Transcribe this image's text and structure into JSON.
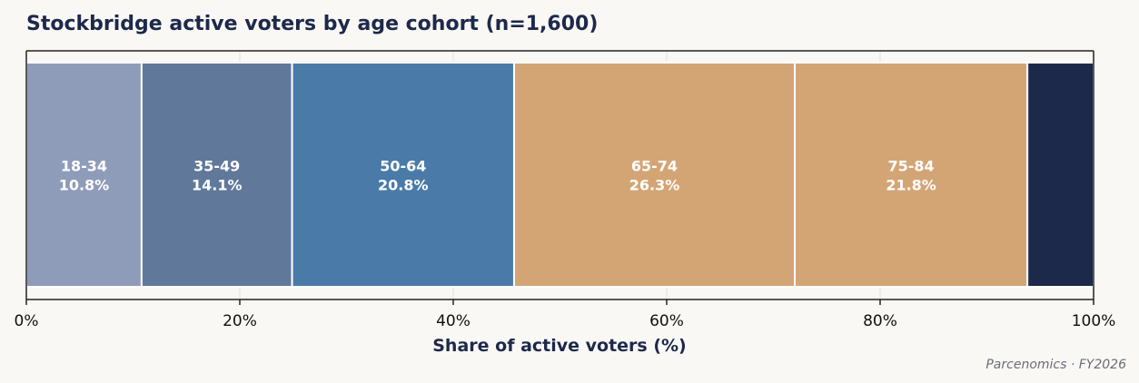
{
  "chart_data": {
    "type": "bar",
    "orientation": "horizontal-stacked-100",
    "title": "Stockbridge active voters by age cohort (n=1,600)",
    "xlabel": "Share of active voters (%)",
    "ylabel": "",
    "xlim": [
      0,
      100
    ],
    "x_ticks": [
      0,
      20,
      40,
      60,
      80,
      100
    ],
    "x_tick_labels": [
      "0%",
      "20%",
      "40%",
      "60%",
      "80%",
      "100%"
    ],
    "grid": "vertical",
    "legend": "none",
    "segments": [
      {
        "label": "18-34",
        "value": 10.8,
        "value_label": "10.8%",
        "color": "#8e9cba"
      },
      {
        "label": "35-49",
        "value": 14.1,
        "value_label": "14.1%",
        "color": "#60799b"
      },
      {
        "label": "50-64",
        "value": 20.8,
        "value_label": "20.8%",
        "color": "#4a7ba8"
      },
      {
        "label": "65-74",
        "value": 26.3,
        "value_label": "26.3%",
        "color": "#d3a575"
      },
      {
        "label": "75-84",
        "value": 21.8,
        "value_label": "21.8%",
        "color": "#d3a575"
      },
      {
        "label": "",
        "value": 6.2,
        "value_label": "",
        "color": "#1d294b"
      }
    ],
    "source": "Parcenomics · FY2026"
  },
  "colors": {
    "background": "#f9f8f5",
    "title": "#1d294b",
    "axis": "#222222",
    "grid": "#e6e4df"
  }
}
